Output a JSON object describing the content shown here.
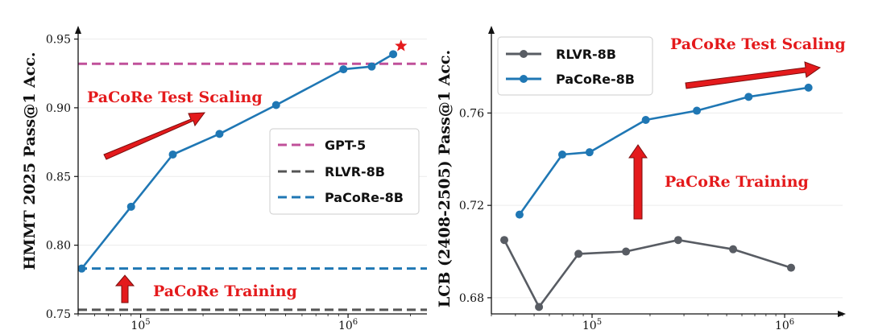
{
  "chart_data": [
    {
      "type": "line",
      "id": "left",
      "xscale": "log",
      "xlim": [
        50000,
        2400000
      ],
      "ylim": [
        0.75,
        0.955
      ],
      "ylabel": "HMMT 2025 Pass@1 Acc.",
      "yticks": [
        0.75,
        0.8,
        0.85,
        0.9,
        0.95
      ],
      "ytick_labels": [
        "0.75",
        "0.80",
        "0.85",
        "0.90",
        "0.95"
      ],
      "xticks": [
        {
          "value": 100000,
          "base": "10",
          "exp": "5"
        },
        {
          "value": 1000000,
          "base": "10",
          "exp": "6"
        }
      ],
      "series": [
        {
          "name": "PaCoRe Test Scaling",
          "color": "#1f77b4",
          "x": [
            52000,
            90000,
            143000,
            240000,
            450000,
            950000,
            1300000,
            1650000
          ],
          "y": [
            0.783,
            0.828,
            0.866,
            0.881,
            0.902,
            0.928,
            0.93,
            0.939
          ]
        }
      ],
      "hlines": [
        {
          "name": "GPT-5",
          "value": 0.932,
          "color": "#c0509a"
        },
        {
          "name": "RLVR-8B",
          "value": 0.753,
          "color": "#555555"
        },
        {
          "name": "PaCoRe-8B",
          "value": 0.783,
          "color": "#1f77b4"
        }
      ],
      "star": {
        "x": 1800000,
        "y": 0.945,
        "color": "#e41a1c"
      },
      "legend": {
        "position": "right",
        "entries": [
          "GPT-5",
          "RLVR-8B",
          "PaCoRe-8B"
        ]
      },
      "annotations": [
        "PaCoRe Test Scaling",
        "PaCoRe Training"
      ],
      "grid": true
    },
    {
      "type": "line",
      "id": "right",
      "xscale": "log",
      "xlim": [
        30000,
        2000000
      ],
      "ylim": [
        0.673,
        0.795
      ],
      "ylabel": "LCB (2408-2505) Pass@1 Acc.",
      "yticks": [
        0.68,
        0.72,
        0.76
      ],
      "ytick_labels": [
        "0.68",
        "0.72",
        "0.76"
      ],
      "xticks": [
        {
          "value": 100000,
          "base": "10",
          "exp": "5"
        },
        {
          "value": 1000000,
          "base": "10",
          "exp": "6"
        }
      ],
      "series": [
        {
          "name": "RLVR-8B",
          "color": "#585c63",
          "x": [
            35000,
            53000,
            85000,
            150000,
            280000,
            540000,
            1080000
          ],
          "y": [
            0.705,
            0.676,
            0.699,
            0.7,
            0.705,
            0.701,
            0.693
          ]
        },
        {
          "name": "PaCoRe-8B",
          "color": "#1f77b4",
          "x": [
            42000,
            70000,
            97000,
            190000,
            350000,
            650000,
            1330000
          ],
          "y": [
            0.716,
            0.742,
            0.743,
            0.757,
            0.761,
            0.767,
            0.771
          ]
        }
      ],
      "legend": {
        "position": "top-left",
        "entries": [
          "RLVR-8B",
          "PaCoRe-8B"
        ]
      },
      "annotations": [
        "PaCoRe Test Scaling",
        "PaCoRe Training"
      ],
      "grid": true
    }
  ]
}
